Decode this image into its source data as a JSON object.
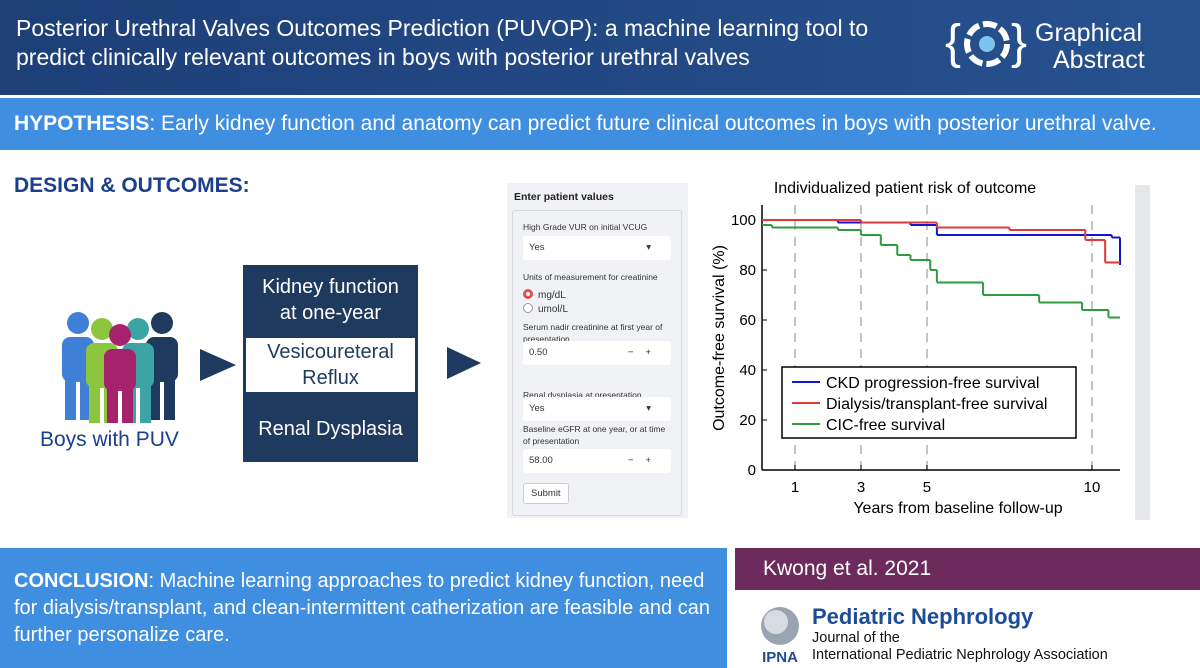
{
  "header": {
    "title_lines": [
      "Posterior Urethral Valves Outcomes Prediction (PUVOP): a machine learning tool to",
      "predict clinically relevant outcomes in boys with posterior urethral valves"
    ],
    "logo_lines": [
      "Graphical",
      "Abstract"
    ]
  },
  "hypothesis": {
    "label": "HYPOTHESIS",
    "text": ": Early kidney function and anatomy can predict future clinical outcomes in boys with posterior urethral valve."
  },
  "design": {
    "label": "DESIGN & OUTCOMES:",
    "caption": "Boys with PUV",
    "boxes": [
      "Kidney function at one-year",
      "Vesicoureteral Reflux",
      "Renal Dysplasia"
    ]
  },
  "form": {
    "title": "Enter patient values",
    "fields": [
      {
        "label": "High Grade VUR on initial VCUG",
        "value": "Yes"
      },
      {
        "label": "Units of measurement for creatinine",
        "options": [
          "mg/dL",
          "umol/L"
        ]
      },
      {
        "label": "Serum nadir creatinine at first year of presentation",
        "value": "0.50"
      },
      {
        "label": "Renal dysplasia at presentation",
        "value": "Yes"
      },
      {
        "label": "Baseline eGFR at one year, or at time of presentation",
        "value": "58.00"
      }
    ],
    "submit": "Submit"
  },
  "chart_data": {
    "type": "step",
    "title": "Individualized patient risk of outcome",
    "xlabel": "Years from baseline follow-up",
    "ylabel": "Outcome-free survival (%)",
    "xlim": [
      0,
      10.85
    ],
    "ylim": [
      0,
      106
    ],
    "xticks": [
      1,
      3,
      5,
      10
    ],
    "yticks": [
      0,
      20,
      40,
      60,
      80,
      100
    ],
    "grid": true,
    "legend": "lower left",
    "series": [
      {
        "name": "CKD progression-free survival",
        "color": "#1414d2",
        "x": [
          0,
          2.3,
          4.5,
          5.3,
          10.6,
          10.85
        ],
        "values": [
          100,
          99,
          98,
          94,
          93,
          82
        ]
      },
      {
        "name": "Dialysis/transplant-free survival",
        "color": "#e0393a",
        "x": [
          0,
          3,
          5.3,
          7.5,
          9.8,
          10.4,
          10.85
        ],
        "values": [
          100,
          99,
          97,
          96,
          92,
          83,
          83
        ]
      },
      {
        "name": "CIC-free survival",
        "color": "#2f9a40",
        "x": [
          0,
          0.3,
          2.3,
          3,
          3.6,
          4.1,
          4.5,
          5.1,
          5.3,
          6.7,
          8.4,
          9.7,
          10.5,
          10.85
        ],
        "values": [
          98,
          97,
          96,
          94,
          90,
          86,
          84,
          80,
          75,
          70,
          67,
          64,
          61,
          61
        ]
      }
    ]
  },
  "conclusion": {
    "label": "CONCLUSION",
    "text": ": Machine learning approaches to predict kidney function, need for dialysis/transplant, and clean-intermittent catherization are feasible and can further personalize care."
  },
  "footer": {
    "citation": "Kwong et al. 2021",
    "journal": "Pediatric Nephrology",
    "subtitle_lines": [
      "Journal of the",
      "International Pediatric Nephrology Association"
    ],
    "society": "IPNA"
  }
}
